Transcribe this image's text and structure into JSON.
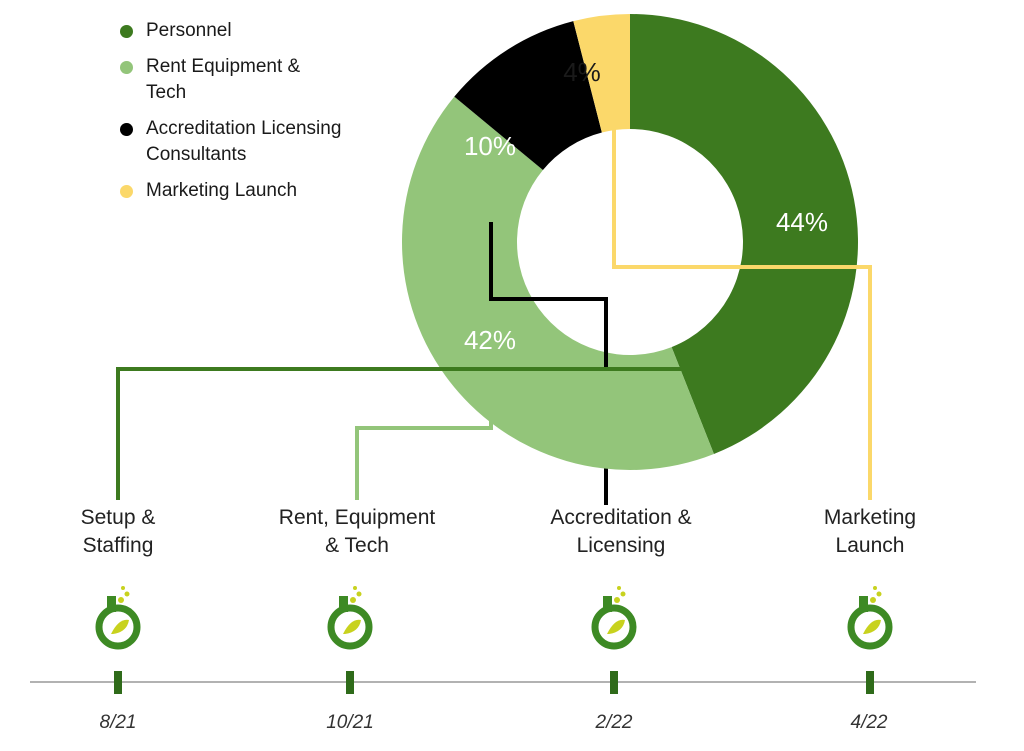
{
  "chart_data": {
    "type": "pie",
    "categories": [
      "Personnel",
      "Rent Equipment & Tech",
      "Accreditation Licensing Consultants",
      "Marketing Launch"
    ],
    "values": [
      44,
      42,
      10,
      4
    ],
    "value_labels": [
      "44%",
      "42%",
      "10%",
      "4%"
    ],
    "colors": [
      "#3d7a1f",
      "#93c57a",
      "#000000",
      "#fbd86a"
    ],
    "label_colors": [
      "#ffffff",
      "#ffffff",
      "#ffffff",
      "#1a1a1a"
    ],
    "legend_position": "top-left"
  },
  "legend": [
    {
      "label": "Personnel",
      "color": "#3d7a1f"
    },
    {
      "label": "Rent Equipment & Tech",
      "color": "#93c57a"
    },
    {
      "label": "Accreditation Licensing Consultants",
      "color": "#000000"
    },
    {
      "label": "Marketing Launch",
      "color": "#fbd86a"
    }
  ],
  "milestones": [
    {
      "label_line1": "Setup &",
      "label_line2": "Staffing",
      "date": "8/21",
      "color": "#3d7a1f"
    },
    {
      "label_line1": "Rent, Equipment",
      "label_line2": "& Tech",
      "date": "10/21",
      "color": "#93c57a"
    },
    {
      "label_line1": "Accreditation &",
      "label_line2": "Licensing",
      "date": "2/22",
      "color": "#000000"
    },
    {
      "label_line1": "Marketing",
      "label_line2": "Launch",
      "date": "4/22",
      "color": "#fbd86a"
    }
  ],
  "icon": {
    "name": "flask-icon",
    "ring_color": "#3d8a24",
    "leaf_color": "#c8d21e"
  }
}
